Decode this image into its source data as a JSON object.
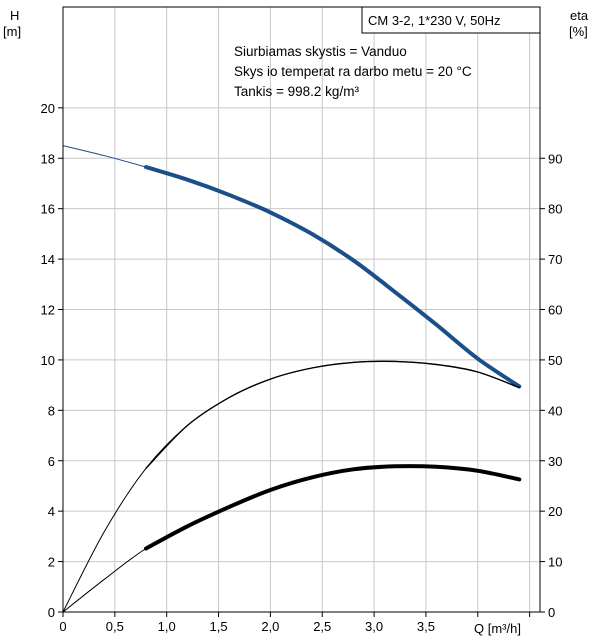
{
  "chart_data": {
    "type": "line",
    "title_box": "CM 3-2, 1*230 V, 50Hz",
    "info_lines": [
      "Siurbiamas skystis = Vanduo",
      "Skys io temperat ra darbo metu = 20 °C",
      "Tankis = 998.2 kg/m³"
    ],
    "xlabel": "Q [m³/h]",
    "ylabel_left": [
      "H",
      "[m]"
    ],
    "ylabel_right": [
      "eta",
      "[%]"
    ],
    "x_ticks": [
      "0",
      "0,5",
      "1,0",
      "1,5",
      "2,0",
      "2,5",
      "3,0",
      "3,5"
    ],
    "y_ticks": [
      "0",
      "2",
      "4",
      "6",
      "8",
      "10",
      "12",
      "14",
      "16",
      "18",
      "20"
    ],
    "y2_ticks": [
      "0",
      "10",
      "20",
      "30",
      "40",
      "50",
      "60",
      "70",
      "80",
      "90"
    ],
    "xlim": [
      0,
      4.6
    ],
    "ylim": [
      0,
      24
    ],
    "y2lim": [
      0,
      120
    ],
    "grid": true,
    "color_head": "#1a4f8a",
    "color_black": "#000000",
    "series": [
      {
        "key": "head",
        "axis": "left",
        "x": [
          0,
          0.4,
          0.8,
          1.2,
          1.6,
          2.0,
          2.4,
          2.8,
          3.2,
          3.6,
          4.0,
          4.4
        ],
        "y": [
          18.5,
          18.1,
          17.65,
          17.15,
          16.55,
          15.85,
          15.0,
          13.95,
          12.7,
          11.4,
          10.05,
          8.95
        ]
      },
      {
        "key": "eff_total",
        "axis": "right",
        "x": [
          0,
          0.4,
          0.8,
          1.2,
          1.6,
          2.0,
          2.4,
          2.8,
          3.2,
          3.6,
          4.0,
          4.4
        ],
        "y": [
          0,
          16.0,
          28.5,
          37.0,
          42.5,
          46.2,
          48.4,
          49.5,
          49.7,
          49.1,
          47.6,
          44.5
        ]
      },
      {
        "key": "eff_hydraulic",
        "axis": "right",
        "x": [
          0,
          0.4,
          0.8,
          1.2,
          1.6,
          2.0,
          2.4,
          2.8,
          3.2,
          3.6,
          4.0,
          4.4
        ],
        "y": [
          0,
          6.5,
          12.6,
          17.0,
          20.8,
          24.2,
          26.7,
          28.3,
          28.9,
          28.8,
          28.0,
          26.3
        ]
      }
    ],
    "duty_range": [
      0.8,
      4.4
    ]
  }
}
